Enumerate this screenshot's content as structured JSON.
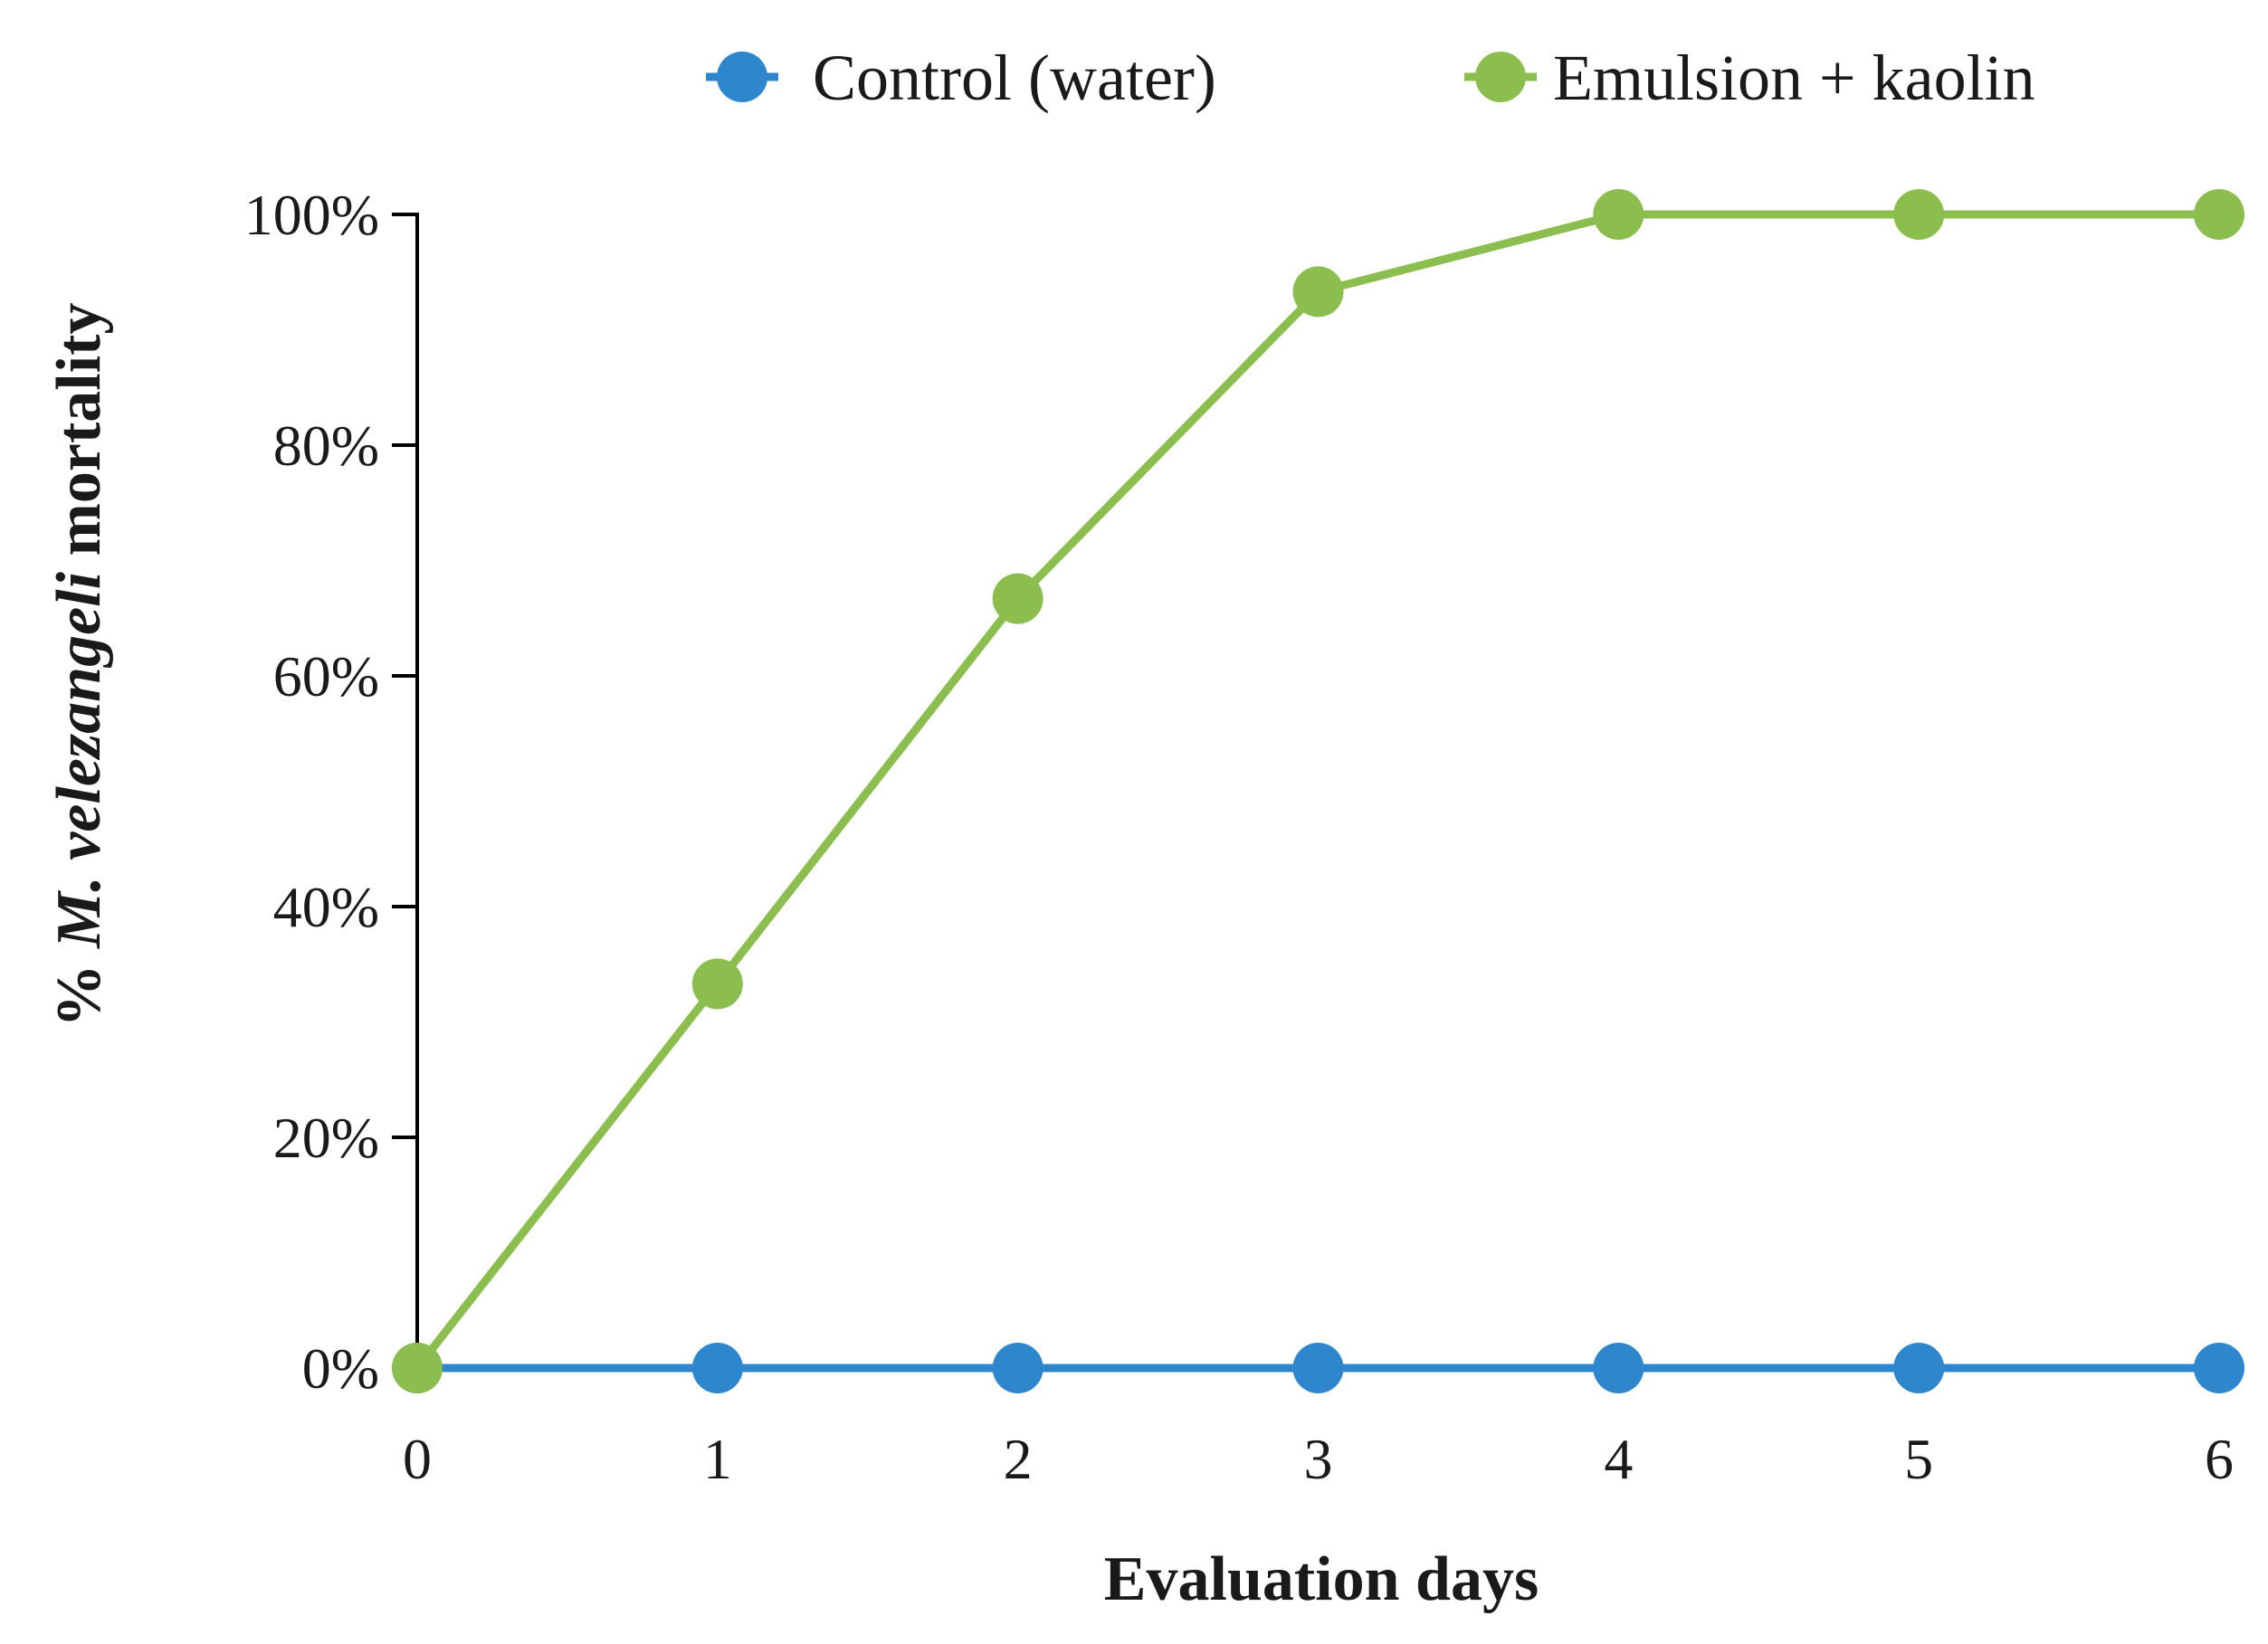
{
  "chart_data": {
    "type": "line",
    "title": "",
    "xlabel": "Evaluation days",
    "ylabel": {
      "prefix": "% ",
      "genus": "M.",
      "species": "velezangeli",
      "suffix": " mortality"
    },
    "x": [
      0,
      1,
      2,
      3,
      4,
      5,
      6
    ],
    "xlim": [
      0,
      6
    ],
    "ylim": [
      0,
      100
    ],
    "y_ticks": [
      0,
      20,
      40,
      60,
      80,
      100
    ],
    "y_tick_labels": [
      "0%",
      "20%",
      "40%",
      "60%",
      "80%",
      "100%"
    ],
    "x_tick_labels": [
      "0",
      "1",
      "2",
      "3",
      "4",
      "5",
      "6"
    ],
    "grid": false,
    "legend_position": "top",
    "series": [
      {
        "name": "Control (water)",
        "color": "#2e86cc",
        "values": [
          0,
          0,
          0,
          0,
          0,
          0,
          0
        ]
      },
      {
        "name": "Emulsion + kaolin",
        "color": "#8bbd4f",
        "values": [
          0,
          33.3,
          66.7,
          93.3,
          100,
          100,
          100
        ]
      }
    ]
  }
}
